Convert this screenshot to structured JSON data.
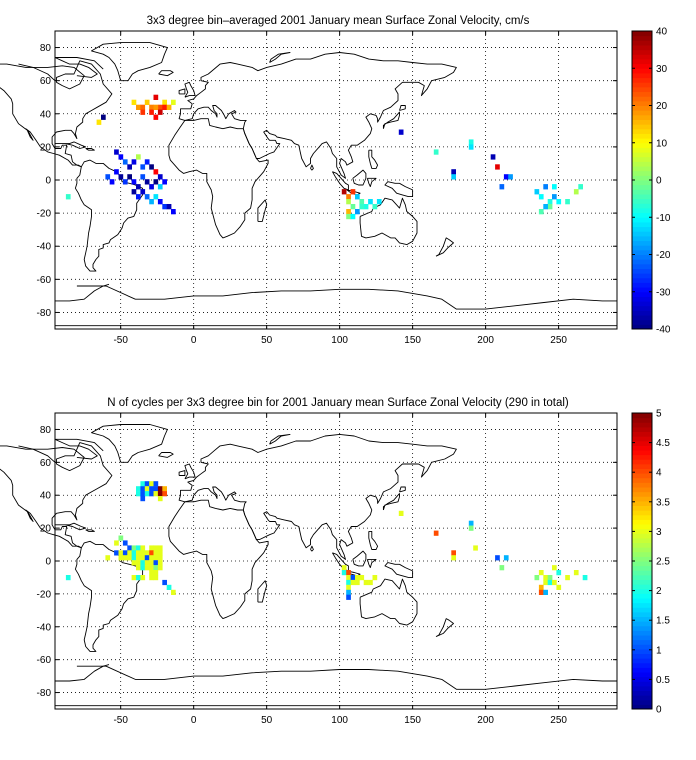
{
  "chart_data": [
    {
      "type": "heatmap",
      "title": "3x3 degree bin–averaged 2001 January mean Surface Zonal Velocity, cm/s",
      "xlabel": "",
      "ylabel": "",
      "xlim": [
        -95,
        290
      ],
      "ylim": [
        -90,
        90
      ],
      "x_ticks": [
        -50,
        0,
        50,
        100,
        150,
        200,
        250
      ],
      "y_ticks": [
        80,
        60,
        40,
        20,
        0,
        -20,
        -40,
        -60,
        -80
      ],
      "grid": true,
      "colormap": "jet",
      "colorbar": {
        "min": -40,
        "max": 40,
        "ticks": [
          40,
          30,
          20,
          10,
          0,
          -10,
          -20,
          -30,
          -40
        ]
      },
      "bin_size_deg": 3,
      "cells": [
        [
          -41,
          47,
          12
        ],
        [
          -38,
          44,
          18
        ],
        [
          -35,
          44,
          22
        ],
        [
          -32,
          47,
          14
        ],
        [
          -29,
          44,
          20
        ],
        [
          -26,
          50,
          32
        ],
        [
          -23,
          44,
          24
        ],
        [
          -20,
          47,
          12
        ],
        [
          -35,
          41,
          26
        ],
        [
          -29,
          41,
          28
        ],
        [
          -26,
          44,
          18
        ],
        [
          -23,
          41,
          34
        ],
        [
          -20,
          44,
          28
        ],
        [
          -17,
          44,
          16
        ],
        [
          -14,
          47,
          8
        ],
        [
          -26,
          38,
          30
        ],
        [
          -62,
          38,
          -40
        ],
        [
          -65,
          35,
          12
        ],
        [
          -53,
          17,
          -34
        ],
        [
          -50,
          14,
          -30
        ],
        [
          -47,
          11,
          -22
        ],
        [
          -44,
          8,
          -36
        ],
        [
          -41,
          11,
          -32
        ],
        [
          -38,
          14,
          4
        ],
        [
          -35,
          8,
          -24
        ],
        [
          -32,
          11,
          -28
        ],
        [
          -29,
          8,
          -40
        ],
        [
          -26,
          5,
          30
        ],
        [
          -23,
          2,
          -34
        ],
        [
          -53,
          5,
          -30
        ],
        [
          -50,
          2,
          -38
        ],
        [
          -47,
          -1,
          -26
        ],
        [
          -44,
          2,
          -40
        ],
        [
          -41,
          -1,
          -30
        ],
        [
          -38,
          -4,
          -36
        ],
        [
          -35,
          2,
          -24
        ],
        [
          -32,
          -1,
          -38
        ],
        [
          -29,
          -4,
          -32
        ],
        [
          -26,
          -1,
          -40
        ],
        [
          -23,
          -4,
          -14
        ],
        [
          -20,
          -1,
          -30
        ],
        [
          -41,
          -7,
          -38
        ],
        [
          -38,
          -10,
          -28
        ],
        [
          -35,
          -7,
          -34
        ],
        [
          -32,
          -10,
          -22
        ],
        [
          -29,
          -13,
          -16
        ],
        [
          -26,
          -10,
          -12
        ],
        [
          -23,
          -13,
          -30
        ],
        [
          -20,
          -16,
          -26
        ],
        [
          -17,
          -16,
          -36
        ],
        [
          -14,
          -19,
          -30
        ],
        [
          -59,
          2,
          -24
        ],
        [
          -56,
          -1,
          -30
        ],
        [
          -86,
          -10,
          -6
        ],
        [
          142,
          29,
          -34
        ],
        [
          166,
          17,
          -6
        ],
        [
          190,
          23,
          -8
        ],
        [
          190,
          20,
          -12
        ],
        [
          205,
          14,
          -36
        ],
        [
          208,
          8,
          32
        ],
        [
          178,
          5,
          -36
        ],
        [
          178,
          2,
          -14
        ],
        [
          214,
          2,
          -30
        ],
        [
          217,
          2,
          -18
        ],
        [
          211,
          -4,
          -22
        ],
        [
          103,
          -7,
          36
        ],
        [
          106,
          -10,
          20
        ],
        [
          109,
          -7,
          26
        ],
        [
          106,
          -13,
          4
        ],
        [
          109,
          -16,
          -2
        ],
        [
          106,
          -19,
          16
        ],
        [
          106,
          -22,
          0
        ],
        [
          109,
          -22,
          -10
        ],
        [
          112,
          -10,
          -14
        ],
        [
          115,
          -13,
          -4
        ],
        [
          118,
          -16,
          -8
        ],
        [
          121,
          -13,
          -12
        ],
        [
          124,
          -16,
          -6
        ],
        [
          127,
          -13,
          -12
        ],
        [
          112,
          -19,
          -18
        ],
        [
          115,
          -16,
          -6
        ],
        [
          235,
          -7,
          -14
        ],
        [
          241,
          -4,
          -20
        ],
        [
          238,
          -10,
          -10
        ],
        [
          244,
          -13,
          -8
        ],
        [
          247,
          -4,
          -10
        ],
        [
          244,
          -16,
          -2
        ],
        [
          238,
          -19,
          -4
        ],
        [
          241,
          -16,
          -16
        ],
        [
          250,
          -13,
          -10
        ],
        [
          256,
          -13,
          -6
        ],
        [
          262,
          -7,
          4
        ],
        [
          265,
          -4,
          -6
        ],
        [
          247,
          -10,
          -18
        ]
      ]
    },
    {
      "type": "heatmap",
      "title": "N of cycles per 3x3 degree bin for 2001 January mean Surface Zonal Velocity (290 in total)",
      "xlabel": "",
      "ylabel": "",
      "xlim": [
        -95,
        290
      ],
      "ylim": [
        -90,
        90
      ],
      "x_ticks": [
        -50,
        0,
        50,
        100,
        150,
        200,
        250
      ],
      "y_ticks": [
        80,
        60,
        40,
        20,
        0,
        -20,
        -40,
        -60,
        -80
      ],
      "grid": true,
      "colormap": "jet",
      "colorbar": {
        "min": 0,
        "max": 5,
        "ticks": [
          5,
          4.5,
          4,
          3.5,
          3,
          2.5,
          2,
          1.5,
          1,
          0.5,
          0
        ]
      },
      "bin_size_deg": 3,
      "cells": [
        [
          -35,
          47,
          2
        ],
        [
          -32,
          47,
          1
        ],
        [
          -29,
          47,
          3
        ],
        [
          -26,
          47,
          1
        ],
        [
          -38,
          44,
          2
        ],
        [
          -35,
          44,
          1
        ],
        [
          -32,
          44,
          3
        ],
        [
          -29,
          44,
          1
        ],
        [
          -26,
          44,
          1
        ],
        [
          -23,
          44,
          5
        ],
        [
          -20,
          44,
          3.5
        ],
        [
          -38,
          41,
          2
        ],
        [
          -35,
          41,
          1
        ],
        [
          -32,
          41,
          2
        ],
        [
          -29,
          41,
          1
        ],
        [
          -26,
          41,
          3
        ],
        [
          -23,
          41,
          5
        ],
        [
          -20,
          41,
          4
        ],
        [
          -23,
          38,
          3
        ],
        [
          -35,
          38,
          1
        ],
        [
          -53,
          11,
          3
        ],
        [
          -50,
          14,
          2.5
        ],
        [
          -47,
          11,
          1
        ],
        [
          -44,
          8,
          1
        ],
        [
          -41,
          8,
          2.5
        ],
        [
          -38,
          8,
          2
        ],
        [
          -35,
          8,
          3
        ],
        [
          -29,
          8,
          3
        ],
        [
          -26,
          8,
          3
        ],
        [
          -23,
          8,
          3
        ],
        [
          -53,
          5,
          1
        ],
        [
          -50,
          5,
          3
        ],
        [
          -47,
          5,
          1
        ],
        [
          -44,
          5,
          3
        ],
        [
          -41,
          5,
          2
        ],
        [
          -38,
          5,
          3
        ],
        [
          -35,
          5,
          3
        ],
        [
          -32,
          5,
          3
        ],
        [
          -29,
          5,
          4
        ],
        [
          -26,
          5,
          3
        ],
        [
          -23,
          5,
          3
        ],
        [
          -50,
          2,
          3
        ],
        [
          -47,
          2,
          3
        ],
        [
          -44,
          2,
          3
        ],
        [
          -41,
          2,
          2
        ],
        [
          -38,
          2,
          3
        ],
        [
          -35,
          2,
          3
        ],
        [
          -32,
          2,
          1
        ],
        [
          -29,
          2,
          3
        ],
        [
          -26,
          2,
          3
        ],
        [
          -23,
          2,
          3
        ],
        [
          -41,
          -1,
          3
        ],
        [
          -38,
          -1,
          3
        ],
        [
          -35,
          -1,
          2
        ],
        [
          -32,
          -1,
          3
        ],
        [
          -29,
          -1,
          3
        ],
        [
          -26,
          -1,
          1
        ],
        [
          -23,
          -1,
          3
        ],
        [
          -38,
          -4,
          3
        ],
        [
          -35,
          -4,
          2
        ],
        [
          -32,
          -4,
          3
        ],
        [
          -29,
          -4,
          3
        ],
        [
          -26,
          -4,
          2.5
        ],
        [
          -23,
          -4,
          3
        ],
        [
          -29,
          -7,
          3
        ],
        [
          -26,
          -7,
          3
        ],
        [
          -41,
          -10,
          3
        ],
        [
          -38,
          -10,
          2
        ],
        [
          -35,
          -10,
          3
        ],
        [
          -29,
          -10,
          3
        ],
        [
          -26,
          -10,
          3
        ],
        [
          -20,
          -13,
          1
        ],
        [
          -17,
          -16,
          2
        ],
        [
          -14,
          -19,
          3
        ],
        [
          -86,
          -10,
          2
        ],
        [
          -59,
          2,
          3
        ],
        [
          142,
          29,
          3
        ],
        [
          166,
          17,
          4
        ],
        [
          190,
          23,
          1.5
        ],
        [
          190,
          20,
          2.5
        ],
        [
          193,
          8,
          3
        ],
        [
          178,
          5,
          4
        ],
        [
          178,
          2,
          3
        ],
        [
          208,
          2,
          1
        ],
        [
          214,
          2,
          1.5
        ],
        [
          211,
          -4,
          2.5
        ],
        [
          103,
          -4,
          3
        ],
        [
          103,
          -7,
          2
        ],
        [
          106,
          -7,
          4
        ],
        [
          106,
          -10,
          3
        ],
        [
          109,
          -10,
          1
        ],
        [
          112,
          -10,
          3
        ],
        [
          106,
          -13,
          2
        ],
        [
          109,
          -13,
          3
        ],
        [
          112,
          -13,
          3
        ],
        [
          115,
          -10,
          3
        ],
        [
          118,
          -13,
          3
        ],
        [
          121,
          -13,
          3
        ],
        [
          124,
          -10,
          3
        ],
        [
          106,
          -16,
          3
        ],
        [
          106,
          -19,
          1.5
        ],
        [
          106,
          -22,
          1
        ],
        [
          235,
          -10,
          2.5
        ],
        [
          238,
          -7,
          3
        ],
        [
          241,
          -10,
          3
        ],
        [
          244,
          -10,
          2.5
        ],
        [
          250,
          -7,
          2
        ],
        [
          247,
          -4,
          3
        ],
        [
          241,
          -13,
          3
        ],
        [
          244,
          -13,
          2
        ],
        [
          238,
          -16,
          3.5
        ],
        [
          238,
          -19,
          4
        ],
        [
          241,
          -19,
          1.5
        ],
        [
          247,
          -13,
          3
        ],
        [
          250,
          -16,
          3
        ],
        [
          256,
          -10,
          3
        ],
        [
          262,
          -7,
          3
        ],
        [
          268,
          -10,
          2
        ]
      ]
    }
  ]
}
